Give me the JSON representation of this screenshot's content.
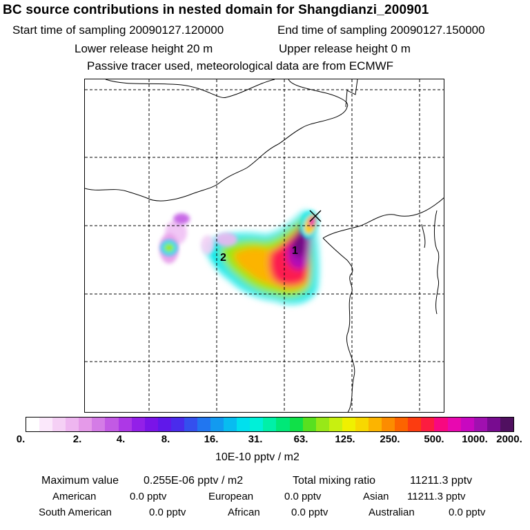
{
  "title": "BC  source contributions in nested domain for Shangdianzi_200901",
  "sampling": {
    "start": "Start time of sampling 20090127.120000",
    "end": "End time of sampling 20090127.150000"
  },
  "release": {
    "lower": "Lower release height   20 m",
    "upper": "Upper release height    0 m"
  },
  "tracer_note": "Passive tracer used, meteorological data are from ECMWF",
  "map": {
    "labels": {
      "source1": "1",
      "source2": "2"
    },
    "receptor_marker": "cross-marker"
  },
  "colorbar": {
    "colors": [
      "#ffffff",
      "#fbe8fb",
      "#f5d0f5",
      "#eeb6f0",
      "#e59ae9",
      "#d47ce6",
      "#c25ae4",
      "#ad38e6",
      "#9320e8",
      "#7a14e8",
      "#6018ea",
      "#4a2cec",
      "#3450ee",
      "#2176f0",
      "#129af0",
      "#08bcf0",
      "#00e0ee",
      "#00f0d8",
      "#00f0a8",
      "#00e878",
      "#10e048",
      "#58e020",
      "#98e818",
      "#c8f010",
      "#f0f000",
      "#f8d800",
      "#fcb400",
      "#fc8c00",
      "#fc6400",
      "#fc3c10",
      "#fc1c40",
      "#f80880",
      "#e808b0",
      "#c808c0",
      "#a010b0",
      "#780c90",
      "#501060"
    ],
    "ticks": [
      "0.",
      "2.",
      "4.",
      "8.",
      "16.",
      "31.",
      "63.",
      "125.",
      "250.",
      "500.",
      "1000.",
      "2000."
    ],
    "units": "10E-10 pptv / m2"
  },
  "stats": {
    "max_label": "Maximum value",
    "max_value": "0.255E-06 pptv / m2",
    "total_label": "Total mixing ratio",
    "total_value": "11211.3 pptv",
    "regions": [
      {
        "name": "American",
        "value": "0.0 pptv"
      },
      {
        "name": "European",
        "value": "0.0 pptv"
      },
      {
        "name": "Asian",
        "value": "11211.3 pptv"
      },
      {
        "name": "South American",
        "value": "0.0 pptv"
      },
      {
        "name": "African",
        "value": "0.0 pptv"
      },
      {
        "name": "Australian",
        "value": "0.0 pptv"
      }
    ]
  }
}
